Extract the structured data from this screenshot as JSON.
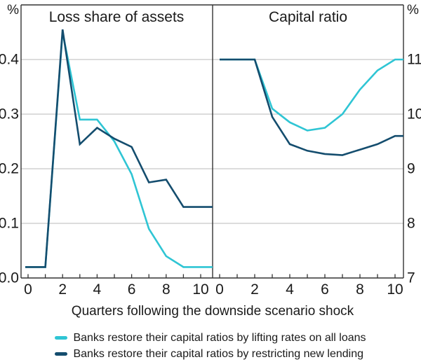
{
  "y_left": {
    "unit": "%",
    "ticks": [
      "0.0",
      "0.1",
      "0.2",
      "0.3",
      "0.4"
    ]
  },
  "y_right": {
    "unit": "%",
    "ticks": [
      "7",
      "8",
      "9",
      "10",
      "11"
    ]
  },
  "x_axis": {
    "title": "Quarters following the downside scenario shock",
    "ticks": [
      "0",
      "2",
      "4",
      "6",
      "8",
      "10"
    ]
  },
  "panels": [
    {
      "title": "Loss share of assets"
    },
    {
      "title": "Capital ratio"
    }
  ],
  "legend": [
    {
      "label": "Banks restore their capital ratios by lifting rates on all loans",
      "color": "#2fc5d4"
    },
    {
      "label": "Banks restore their capital ratios by restricting new lending",
      "color": "#144d6e"
    }
  ],
  "chart_data": [
    {
      "type": "line",
      "title": "Loss share of assets",
      "ylabel": "%",
      "ylim": [
        0,
        0.5
      ],
      "yticks": [
        0.0,
        0.1,
        0.2,
        0.3,
        0.4
      ],
      "xlabel": "Quarters following the downside scenario shock",
      "x": [
        0,
        1,
        2,
        3,
        4,
        5,
        6,
        7,
        8,
        9,
        10
      ],
      "grid": true,
      "legend_position": "bottom",
      "series": [
        {
          "name": "Banks restore their capital ratios by lifting rates on all loans",
          "color": "#2fc5d4",
          "values": [
            0.02,
            0.02,
            0.45,
            0.29,
            0.29,
            0.25,
            0.19,
            0.09,
            0.04,
            0.02,
            0.02
          ]
        },
        {
          "name": "Banks restore their capital ratios by restricting new lending",
          "color": "#144d6e",
          "values": [
            0.02,
            0.02,
            0.455,
            0.245,
            0.275,
            0.255,
            0.24,
            0.175,
            0.18,
            0.13,
            0.13
          ]
        }
      ]
    },
    {
      "type": "line",
      "title": "Capital ratio",
      "ylabel": "%",
      "ylim": [
        7,
        12
      ],
      "yticks": [
        7,
        8,
        9,
        10,
        11
      ],
      "xlabel": "Quarters following the downside scenario shock",
      "x": [
        0,
        1,
        2,
        3,
        4,
        5,
        6,
        7,
        8,
        9,
        10
      ],
      "grid": true,
      "legend_position": "bottom",
      "series": [
        {
          "name": "Banks restore their capital ratios by lifting rates on all loans",
          "color": "#2fc5d4",
          "values": [
            11.0,
            11.0,
            11.0,
            10.1,
            9.85,
            9.7,
            9.75,
            10.0,
            10.45,
            10.8,
            11.0
          ]
        },
        {
          "name": "Banks restore their capital ratios by restricting new lending",
          "color": "#144d6e",
          "values": [
            11.0,
            11.0,
            11.0,
            9.95,
            9.45,
            9.33,
            9.27,
            9.25,
            9.35,
            9.45,
            9.6
          ]
        }
      ]
    }
  ]
}
